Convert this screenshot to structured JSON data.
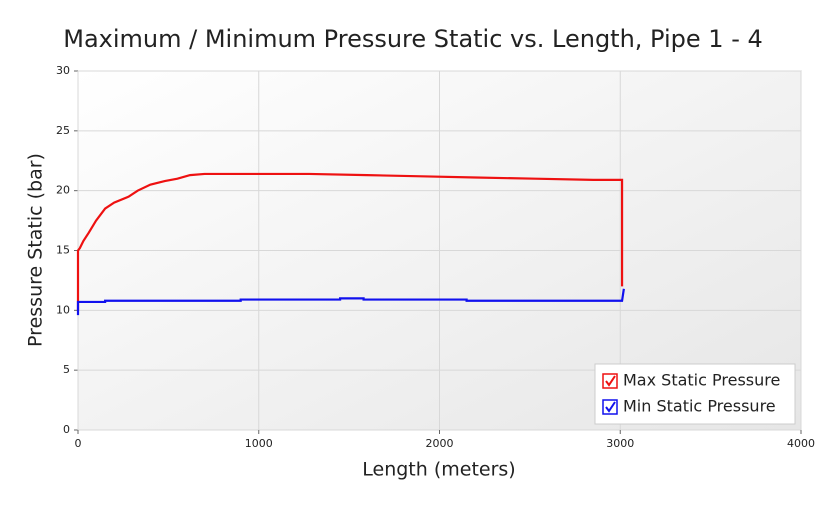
{
  "chart_data": {
    "type": "line",
    "title": "Maximum / Minimum Pressure Static vs. Length, Pipe 1 - 4",
    "x_label": "Length (meters)",
    "y_label": "Pressure Static (bar)",
    "xlim": [
      0,
      4000
    ],
    "xticks": [
      0,
      1000,
      2000,
      3000,
      4000
    ],
    "ylim": [
      0,
      30
    ],
    "yticks": [
      0,
      5,
      10,
      15,
      20,
      25,
      30
    ],
    "grid": true,
    "legend": "lower right",
    "series": [
      {
        "name": "Max Static Pressure",
        "color": "#ee1111",
        "x": [
          0,
          0,
          10,
          30,
          60,
          100,
          150,
          200,
          280,
          330,
          400,
          480,
          550,
          620,
          700,
          1280,
          1600,
          1900,
          2200,
          2530,
          2850,
          3010,
          3010,
          3010
        ],
        "values": [
          10,
          15,
          15.2,
          15.8,
          16.5,
          17.5,
          18.5,
          19,
          19.5,
          20,
          20.5,
          20.8,
          21,
          21.3,
          21.4,
          21.4,
          21.3,
          21.2,
          21.1,
          21.0,
          20.9,
          20.9,
          21.0,
          12
        ]
      },
      {
        "name": "Min Static Pressure",
        "color": "#1111ee",
        "x": [
          0,
          0,
          150,
          150,
          900,
          900,
          1450,
          1450,
          1580,
          1580,
          2150,
          2150,
          3010,
          3020
        ],
        "values": [
          9.6,
          10.7,
          10.7,
          10.8,
          10.8,
          10.9,
          10.9,
          11.0,
          11.0,
          10.9,
          10.9,
          10.8,
          10.8,
          11.8
        ]
      }
    ]
  }
}
